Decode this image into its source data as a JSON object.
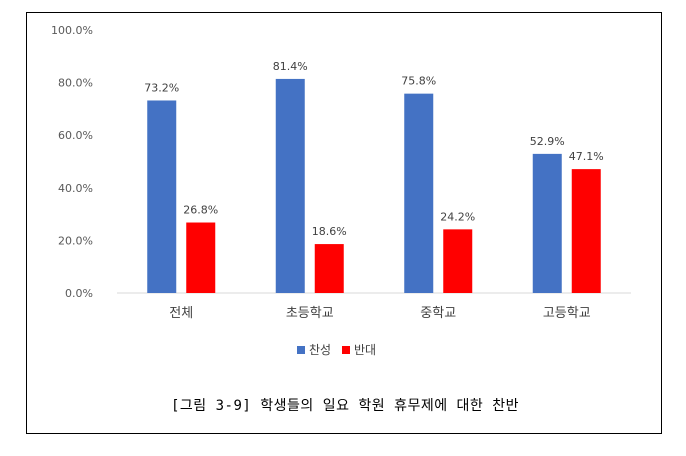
{
  "chart_data": {
    "type": "bar",
    "categories": [
      "전체",
      "초등학교",
      "중학교",
      "고등학교"
    ],
    "series": [
      {
        "name": "찬성",
        "color": "#4472C4",
        "values": [
          73.2,
          81.4,
          75.8,
          52.9
        ],
        "labels": [
          "73.2%",
          "81.4%",
          "75.8%",
          "52.9%"
        ]
      },
      {
        "name": "반대",
        "color": "#FF0000",
        "values": [
          26.8,
          18.6,
          24.2,
          47.1
        ],
        "labels": [
          "26.8%",
          "18.6%",
          "24.2%",
          "47.1%"
        ]
      }
    ],
    "ylim": [
      0,
      100
    ],
    "y_ticks": [
      "0.0%",
      "20.0%",
      "40.0%",
      "60.0%",
      "80.0%",
      "100.0%"
    ],
    "grid": false,
    "legend_position": "bottom"
  },
  "caption": "[그림 3-9] 학생들의 일요 학원 휴무제에 대한 찬반"
}
